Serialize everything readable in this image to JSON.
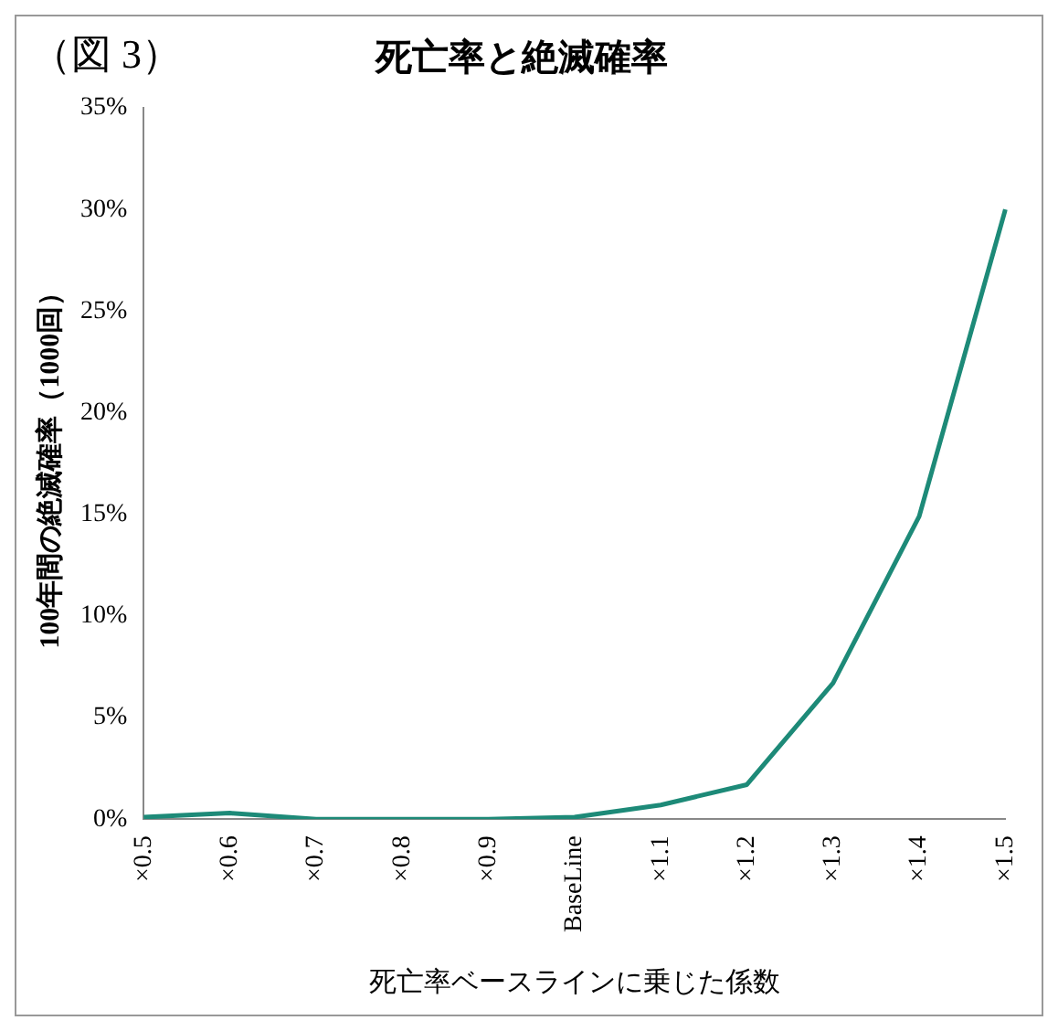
{
  "chart_data": {
    "type": "line",
    "title": "死亡率と絶滅確率",
    "annotations": [
      "（図 3）"
    ],
    "xlabel": "死亡率ベースラインに乗じた係数",
    "ylabel": "100年間の絶滅確率（1000回）",
    "categories": [
      "×0.5",
      "×0.6",
      "×0.7",
      "×0.8",
      "×0.9",
      "BaseLine",
      "×1.1",
      "×1.2",
      "×1.3",
      "×1.4",
      "×1.5"
    ],
    "series": [
      {
        "color": "#1d8a78",
        "values": [
          0.1,
          0.3,
          0,
          0,
          0,
          0.1,
          0.7,
          1.7,
          6.7,
          14.9,
          30.0
        ]
      }
    ],
    "ylim": [
      0,
      35
    ],
    "yticks": [
      {
        "value": 0,
        "label": "0%"
      },
      {
        "value": 5,
        "label": "5%"
      },
      {
        "value": 10,
        "label": "10%"
      },
      {
        "value": 15,
        "label": "15%"
      },
      {
        "value": 20,
        "label": "20%"
      },
      {
        "value": 25,
        "label": "25%"
      },
      {
        "value": 30,
        "label": "30%"
      },
      {
        "value": 35,
        "label": "35%"
      }
    ],
    "grid": false,
    "legend": false,
    "marker": "none",
    "line_style": "solid"
  }
}
